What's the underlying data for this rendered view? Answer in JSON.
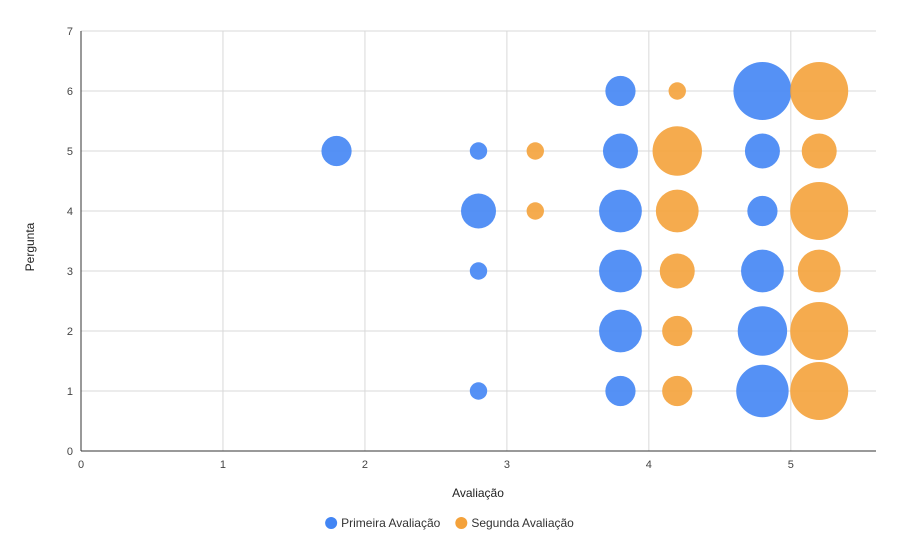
{
  "chart_data": {
    "type": "scatter",
    "subtype": "bubble",
    "xlabel": "Avaliação",
    "ylabel": "Pergunta",
    "xlim": [
      0,
      5.6
    ],
    "ylim": [
      0,
      7
    ],
    "xticks": [
      "0",
      "1",
      "2",
      "3",
      "4",
      "5"
    ],
    "yticks": [
      "0",
      "1",
      "2",
      "3",
      "4",
      "5",
      "6",
      "7"
    ],
    "grid": true,
    "legend_position": "bottom",
    "series": [
      {
        "name": "Primeira Avaliação",
        "color": "#4285F4",
        "points": [
          {
            "x": 1.8,
            "y": 5,
            "size": 3
          },
          {
            "x": 2.8,
            "y": 5,
            "size": 1
          },
          {
            "x": 2.8,
            "y": 4,
            "size": 4
          },
          {
            "x": 2.8,
            "y": 3,
            "size": 1
          },
          {
            "x": 2.8,
            "y": 1,
            "size": 1
          },
          {
            "x": 3.8,
            "y": 6,
            "size": 3
          },
          {
            "x": 3.8,
            "y": 5,
            "size": 4
          },
          {
            "x": 3.8,
            "y": 4,
            "size": 6
          },
          {
            "x": 3.8,
            "y": 3,
            "size": 6
          },
          {
            "x": 3.8,
            "y": 2,
            "size": 6
          },
          {
            "x": 3.8,
            "y": 1,
            "size": 3
          },
          {
            "x": 4.8,
            "y": 6,
            "size": 11
          },
          {
            "x": 4.8,
            "y": 5,
            "size": 4
          },
          {
            "x": 4.8,
            "y": 4,
            "size": 3
          },
          {
            "x": 4.8,
            "y": 3,
            "size": 6
          },
          {
            "x": 4.8,
            "y": 2,
            "size": 8
          },
          {
            "x": 4.8,
            "y": 1,
            "size": 9
          }
        ]
      },
      {
        "name": "Segunda Avaliação",
        "color": "#F4A23B",
        "points": [
          {
            "x": 3.2,
            "y": 5,
            "size": 1
          },
          {
            "x": 3.2,
            "y": 4,
            "size": 1
          },
          {
            "x": 4.2,
            "y": 6,
            "size": 1
          },
          {
            "x": 4.2,
            "y": 5,
            "size": 8
          },
          {
            "x": 4.2,
            "y": 4,
            "size": 6
          },
          {
            "x": 4.2,
            "y": 3,
            "size": 4
          },
          {
            "x": 4.2,
            "y": 2,
            "size": 3
          },
          {
            "x": 4.2,
            "y": 1,
            "size": 3
          },
          {
            "x": 5.2,
            "y": 6,
            "size": 11
          },
          {
            "x": 5.2,
            "y": 5,
            "size": 4
          },
          {
            "x": 5.2,
            "y": 4,
            "size": 11
          },
          {
            "x": 5.2,
            "y": 3,
            "size": 6
          },
          {
            "x": 5.2,
            "y": 2,
            "size": 11
          },
          {
            "x": 5.2,
            "y": 1,
            "size": 11
          }
        ]
      }
    ]
  }
}
